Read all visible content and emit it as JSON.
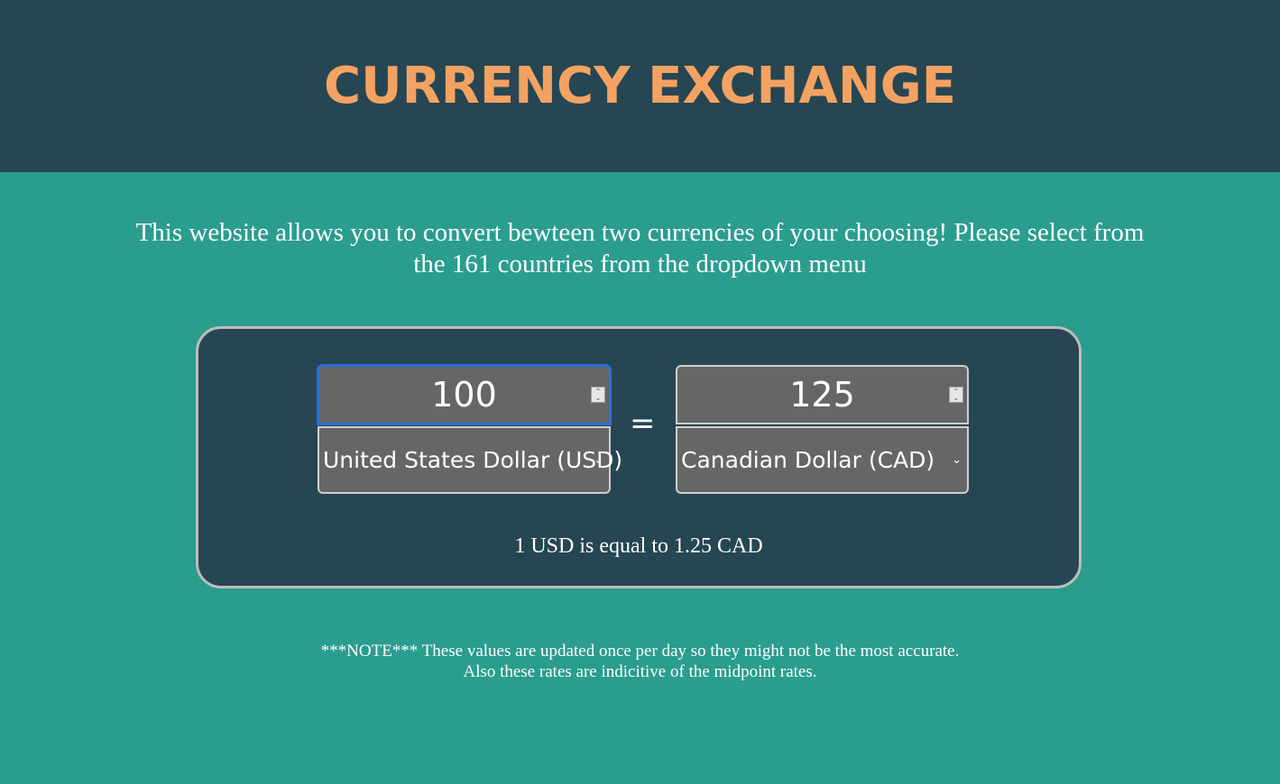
{
  "header": {
    "title": "CURRENCY EXCHANGE"
  },
  "intro": {
    "text": "This website allows you to convert bewteen two currencies of your choosing! Please select from the 161 countries from the dropdown menu"
  },
  "converter": {
    "from": {
      "amount": "100",
      "currency": "United States Dollar (USD)"
    },
    "equals_sign": "=",
    "to": {
      "amount": "125",
      "currency": "Canadian Dollar (CAD)"
    },
    "rate_text": "1 USD is equal to 1.25 CAD"
  },
  "note": {
    "line1": "***NOTE*** These values are updated once per day so they might not be the most accurate.",
    "line2": "Also these rates are indicitive of the midpoint rates."
  },
  "colors": {
    "header_bg": "#264653",
    "page_bg": "#2a9d8f",
    "title": "#f4a261",
    "field_bg": "#666666",
    "focus_border": "#2b6fd6"
  },
  "icons": {
    "spinner": "number-spinner-icon",
    "dropdown": "chevron-down-icon"
  }
}
